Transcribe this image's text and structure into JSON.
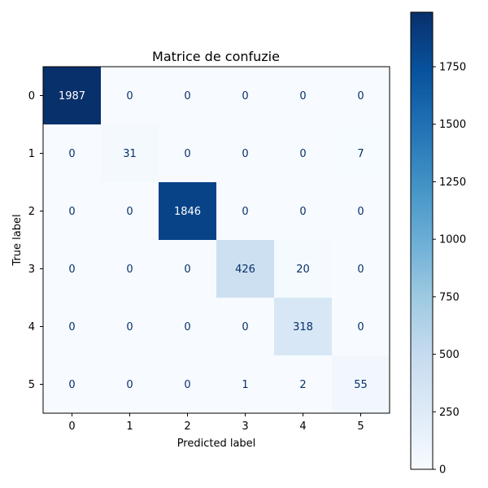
{
  "chart_data": {
    "type": "heatmap",
    "title": "Matrice de confuzie",
    "xlabel": "Predicted label",
    "ylabel": "True label",
    "x_categories": [
      "0",
      "1",
      "2",
      "3",
      "4",
      "5"
    ],
    "y_categories": [
      "0",
      "1",
      "2",
      "3",
      "4",
      "5"
    ],
    "matrix": [
      [
        1987,
        0,
        0,
        0,
        0,
        0
      ],
      [
        0,
        31,
        0,
        0,
        0,
        7
      ],
      [
        0,
        0,
        1846,
        0,
        0,
        0
      ],
      [
        0,
        0,
        0,
        426,
        20,
        0
      ],
      [
        0,
        0,
        0,
        0,
        318,
        0
      ],
      [
        0,
        0,
        0,
        1,
        2,
        55
      ]
    ],
    "colormap": "Blues",
    "colorbar": {
      "range": [
        0,
        1987
      ],
      "ticks": [
        0,
        250,
        500,
        750,
        1000,
        1250,
        1500,
        1750
      ]
    },
    "colors": {
      "low": "#f7fbff",
      "high": "#08306b",
      "text_dark": "#08306b",
      "text_light": "#ffffff"
    }
  }
}
